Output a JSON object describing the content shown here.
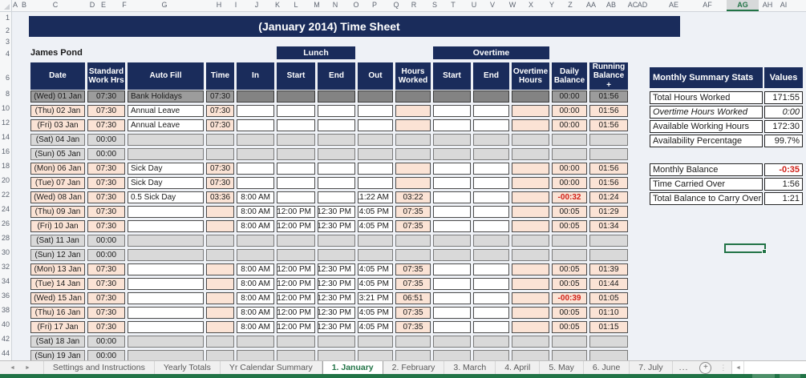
{
  "window": {
    "active_cell_column": "AG"
  },
  "colors": {
    "navy": "#1a2c5b",
    "peach": "#fbe3d5",
    "accent_green": "#217346",
    "negative_red": "#d02018"
  },
  "icons": {
    "tab_scroll_left": "◄",
    "tab_scroll_right": "►",
    "add_sheet": "+",
    "tab_menu_dots": "⋮",
    "hscroll_left": "◄"
  },
  "sheet": {
    "title": "(January 2014) Time Sheet",
    "employee_name": "James Pond",
    "column_letters": [
      "A",
      "B",
      "C",
      "D",
      "E",
      "F",
      "G",
      "H",
      "I",
      "J",
      "K",
      "L",
      "M",
      "N",
      "O",
      "P",
      "Q",
      "R",
      "S",
      "T",
      "U",
      "V",
      "W",
      "X",
      "Y",
      "Z",
      "AA",
      "AB",
      "AC",
      "AD",
      "AE",
      "AF",
      "AG",
      "AH",
      "AI"
    ],
    "row_numbers": [
      "1",
      "2",
      "3",
      "4",
      "6",
      "8",
      "10",
      "12",
      "14",
      "16",
      "18",
      "20",
      "22",
      "24",
      "26",
      "28",
      "30",
      "32",
      "34",
      "36",
      "38",
      "40",
      "42",
      "44"
    ],
    "group_headers": {
      "lunch": "Lunch",
      "overtime": "Overtime"
    },
    "table": {
      "headers": [
        "Date",
        "Standard Work Hrs",
        "Auto Fill",
        "Time",
        "In",
        "Start",
        "End",
        "Out",
        "Hours Worked",
        "Start",
        "End",
        "Overtime Hours",
        "Daily Balance",
        "Running Balance +"
      ],
      "column_keys": [
        "date",
        "standard-work-hrs",
        "auto-fill",
        "time",
        "in",
        "lunch-start",
        "lunch-end",
        "out",
        "hours-worked",
        "overtime-start",
        "overtime-end",
        "overtime-hours",
        "daily-balance",
        "running-balance"
      ],
      "rows": [
        {
          "type": "bank_holiday",
          "cells": [
            "(Wed) 01 Jan",
            "07:30",
            "Bank Holidays",
            "07:30",
            "",
            "",
            "",
            "",
            "",
            "",
            "",
            "",
            "00:00",
            "01:56"
          ]
        },
        {
          "type": "leave",
          "cells": [
            "(Thu) 02 Jan",
            "07:30",
            "Annual Leave",
            "07:30",
            "",
            "",
            "",
            "",
            "",
            "",
            "",
            "",
            "00:00",
            "01:56"
          ]
        },
        {
          "type": "leave",
          "cells": [
            "(Fri) 03 Jan",
            "07:30",
            "Annual Leave",
            "07:30",
            "",
            "",
            "",
            "",
            "",
            "",
            "",
            "",
            "00:00",
            "01:56"
          ]
        },
        {
          "type": "weekend",
          "cells": [
            "(Sat) 04 Jan",
            "00:00",
            "",
            "",
            "",
            "",
            "",
            "",
            "",
            "",
            "",
            "",
            "",
            ""
          ]
        },
        {
          "type": "weekend",
          "cells": [
            "(Sun) 05 Jan",
            "00:00",
            "",
            "",
            "",
            "",
            "",
            "",
            "",
            "",
            "",
            "",
            "",
            ""
          ]
        },
        {
          "type": "leave",
          "cells": [
            "(Mon) 06 Jan",
            "07:30",
            "Sick Day",
            "07:30",
            "",
            "",
            "",
            "",
            "",
            "",
            "",
            "",
            "00:00",
            "01:56"
          ]
        },
        {
          "type": "leave",
          "cells": [
            "(Tue) 07 Jan",
            "07:30",
            "Sick Day",
            "07:30",
            "",
            "",
            "",
            "",
            "",
            "",
            "",
            "",
            "00:00",
            "01:56"
          ]
        },
        {
          "type": "workday",
          "cells": [
            "(Wed) 08 Jan",
            "07:30",
            "0.5 Sick Day",
            "03:36",
            "8:00 AM",
            "",
            "",
            "11:22 AM",
            "03:22",
            "",
            "",
            "",
            "-00:32",
            "01:24"
          ]
        },
        {
          "type": "workday",
          "cells": [
            "(Thu) 09 Jan",
            "07:30",
            "",
            "",
            "8:00 AM",
            "12:00 PM",
            "12:30 PM",
            "4:05 PM",
            "07:35",
            "",
            "",
            "",
            "00:05",
            "01:29"
          ]
        },
        {
          "type": "workday",
          "cells": [
            "(Fri) 10 Jan",
            "07:30",
            "",
            "",
            "8:00 AM",
            "12:00 PM",
            "12:30 PM",
            "4:05 PM",
            "07:35",
            "",
            "",
            "",
            "00:05",
            "01:34"
          ]
        },
        {
          "type": "weekend",
          "cells": [
            "(Sat) 11 Jan",
            "00:00",
            "",
            "",
            "",
            "",
            "",
            "",
            "",
            "",
            "",
            "",
            "",
            ""
          ]
        },
        {
          "type": "weekend",
          "cells": [
            "(Sun) 12 Jan",
            "00:00",
            "",
            "",
            "",
            "",
            "",
            "",
            "",
            "",
            "",
            "",
            "",
            ""
          ]
        },
        {
          "type": "workday",
          "cells": [
            "(Mon) 13 Jan",
            "07:30",
            "",
            "",
            "8:00 AM",
            "12:00 PM",
            "12:30 PM",
            "4:05 PM",
            "07:35",
            "",
            "",
            "",
            "00:05",
            "01:39"
          ]
        },
        {
          "type": "workday",
          "cells": [
            "(Tue) 14 Jan",
            "07:30",
            "",
            "",
            "8:00 AM",
            "12:00 PM",
            "12:30 PM",
            "4:05 PM",
            "07:35",
            "",
            "",
            "",
            "00:05",
            "01:44"
          ]
        },
        {
          "type": "workday",
          "cells": [
            "(Wed) 15 Jan",
            "07:30",
            "",
            "",
            "8:00 AM",
            "12:00 PM",
            "12:30 PM",
            "3:21 PM",
            "06:51",
            "",
            "",
            "",
            "-00:39",
            "01:05"
          ]
        },
        {
          "type": "workday",
          "cells": [
            "(Thu) 16 Jan",
            "07:30",
            "",
            "",
            "8:00 AM",
            "12:00 PM",
            "12:30 PM",
            "4:05 PM",
            "07:35",
            "",
            "",
            "",
            "00:05",
            "01:10"
          ]
        },
        {
          "type": "workday",
          "cells": [
            "(Fri) 17 Jan",
            "07:30",
            "",
            "",
            "8:00 AM",
            "12:00 PM",
            "12:30 PM",
            "4:05 PM",
            "07:35",
            "",
            "",
            "",
            "00:05",
            "01:15"
          ]
        },
        {
          "type": "weekend",
          "cells": [
            "(Sat) 18 Jan",
            "00:00",
            "",
            "",
            "",
            "",
            "",
            "",
            "",
            "",
            "",
            "",
            "",
            ""
          ]
        },
        {
          "type": "weekend",
          "cells": [
            "(Sun) 19 Jan",
            "00:00",
            "",
            "",
            "",
            "",
            "",
            "",
            "",
            "",
            "",
            "",
            "",
            ""
          ]
        }
      ]
    },
    "summary": {
      "title": "Monthly Summary Stats",
      "values_label": "Values",
      "stats": [
        {
          "label": "Total Hours Worked",
          "value": "171:55",
          "italic": false
        },
        {
          "label": "Overtime Hours Worked",
          "value": "0:00",
          "italic": true
        },
        {
          "label": "Available Working Hours",
          "value": "172:30",
          "italic": false
        },
        {
          "label": "Availability Percentage",
          "value": "99.7%",
          "italic": false
        }
      ],
      "balance": [
        {
          "label": "Monthly Balance",
          "value": "-0:35"
        },
        {
          "label": "Time Carried Over",
          "value": "1:56"
        },
        {
          "label": "Total Balance to Carry Over",
          "value": "1:21"
        }
      ]
    },
    "tabs": {
      "items": [
        "Settings and Instructions",
        "Yearly Totals",
        "Yr Calendar Summary",
        "1. January",
        "2. February",
        "3. March",
        "4. April",
        "5. May",
        "6. June",
        "7. July"
      ],
      "active": "1. January",
      "overflow": "..."
    }
  }
}
